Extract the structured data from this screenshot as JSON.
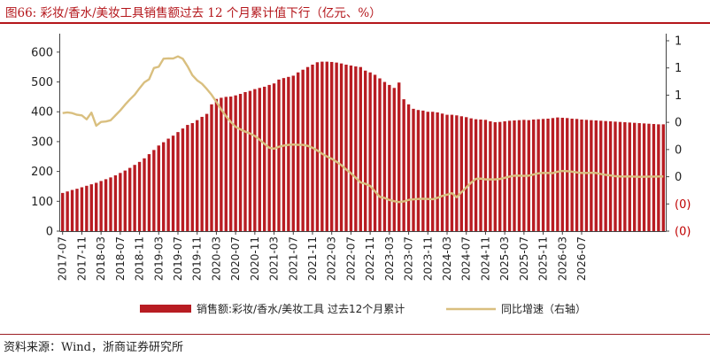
{
  "figure": {
    "title": "图66:  彩妆/香水/美妆工具销售额过去 12 个月累计值下行（亿元、%）",
    "source": "资料来源：Wind，浙商证券研究所"
  },
  "colors": {
    "bar": "#b81c22",
    "line": "#d9bf7f",
    "title": "#b4161b",
    "axis_right_negative": "#c00000",
    "axis": "#333333"
  },
  "chart_data": {
    "type": "bar+line",
    "x_tick_labels": [
      "2017-07",
      "2017-11",
      "2018-03",
      "2018-07",
      "2018-11",
      "2019-03",
      "2019-07",
      "2019-11",
      "2020-03",
      "2020-07",
      "2020-11",
      "2021-03",
      "2021-07",
      "2021-11",
      "2022-03",
      "2022-07",
      "2022-11",
      "2023-03",
      "2023-07",
      "2023-11",
      "2024-03",
      "2024-07",
      "2024-11",
      "2025-03",
      "2025-07",
      "2025-11",
      "2026-03",
      "2026-07"
    ],
    "y_left": {
      "ticks": [
        "0",
        "100",
        "200",
        "300",
        "400",
        "500",
        "600"
      ],
      "ylim": [
        0,
        650
      ]
    },
    "y_right": {
      "ticks": [
        "(0)",
        "(0)",
        "0",
        "0",
        "0",
        "1",
        "1",
        "1"
      ],
      "negative_ticks": [
        0,
        1
      ],
      "ylim": [
        -0.6,
        1.4
      ]
    },
    "legend_position": "bottom",
    "series": [
      {
        "name": "销售额:彩妆/香水/美妆工具 过去12个月累计",
        "type": "bar",
        "axis": "left",
        "values": [
          128,
          133,
          138,
          142,
          147,
          152,
          157,
          162,
          168,
          174,
          180,
          187,
          195,
          203,
          212,
          222,
          232,
          244,
          258,
          272,
          287,
          298,
          310,
          320,
          332,
          344,
          356,
          362,
          372,
          383,
          393,
          425,
          443,
          447,
          450,
          451,
          455,
          460,
          466,
          470,
          476,
          480,
          484,
          490,
          495,
          508,
          513,
          517,
          521,
          532,
          541,
          550,
          558,
          566,
          568,
          568,
          567,
          565,
          562,
          558,
          555,
          552,
          550,
          538,
          532,
          524,
          512,
          500,
          490,
          480,
          498,
          442,
          425,
          410,
          406,
          404,
          400,
          400,
          398,
          394,
          390,
          390,
          388,
          385,
          382,
          378,
          375,
          374,
          373,
          368,
          365,
          366,
          368,
          370,
          371,
          372,
          373,
          372,
          374,
          375,
          376,
          377,
          379,
          381,
          380,
          379,
          377,
          376,
          374,
          373,
          372,
          371,
          370,
          369,
          368,
          367,
          366,
          365,
          364,
          363,
          362,
          361,
          360,
          359,
          358,
          358
        ]
      },
      {
        "name": "同比增速（右轴）",
        "type": "line",
        "axis": "right",
        "values": [
          0.617,
          0.624,
          0.617,
          0.6,
          0.594,
          0.553,
          0.622,
          0.487,
          0.526,
          0.531,
          0.543,
          0.594,
          0.645,
          0.704,
          0.758,
          0.807,
          0.873,
          0.934,
          0.966,
          1.082,
          1.095,
          1.178,
          1.181,
          1.18,
          1.202,
          1.178,
          1.1,
          1.008,
          0.955,
          0.92,
          0.866,
          0.806,
          0.733,
          0.654,
          0.586,
          0.525,
          0.476,
          0.449,
          0.426,
          0.407,
          0.381,
          0.343,
          0.3,
          0.26,
          0.25,
          0.27,
          0.282,
          0.29,
          0.293,
          0.29,
          0.29,
          0.28,
          0.26,
          0.232,
          0.198,
          0.17,
          0.146,
          0.116,
          0.081,
          0.036,
          -0.003,
          -0.05,
          -0.098,
          -0.112,
          -0.134,
          -0.19,
          -0.247,
          -0.258,
          -0.279,
          -0.291,
          -0.3,
          -0.294,
          -0.278,
          -0.272,
          -0.268,
          -0.266,
          -0.268,
          -0.271,
          -0.256,
          -0.237,
          -0.224,
          -0.208,
          -0.25,
          -0.198,
          -0.15,
          -0.1,
          -0.061,
          -0.058,
          -0.066,
          -0.066,
          -0.066,
          -0.062,
          -0.05,
          -0.038,
          -0.028,
          -0.028,
          -0.03,
          -0.028,
          -0.016,
          -0.004,
          0.0,
          0.0,
          -0.002,
          0.013,
          0.02,
          0.018,
          0.013,
          0.006,
          0.0,
          0.0,
          0.002,
          0.0,
          -0.011,
          -0.02,
          -0.025,
          -0.033,
          -0.036,
          -0.037,
          -0.037,
          -0.038,
          -0.04,
          -0.039,
          -0.038,
          -0.038,
          -0.037,
          -0.036
        ]
      }
    ]
  }
}
